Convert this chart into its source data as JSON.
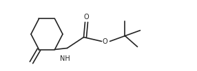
{
  "background_color": "#ffffff",
  "line_color": "#222222",
  "line_width": 1.2,
  "text_color": "#222222",
  "font_size": 7.0,
  "figsize": [
    2.86,
    1.04
  ],
  "dpi": 100,
  "nh_label": "NH",
  "o_double_label": "O",
  "o_single_label": "O",
  "xlim": [
    0,
    286
  ],
  "ylim": [
    0,
    104
  ]
}
